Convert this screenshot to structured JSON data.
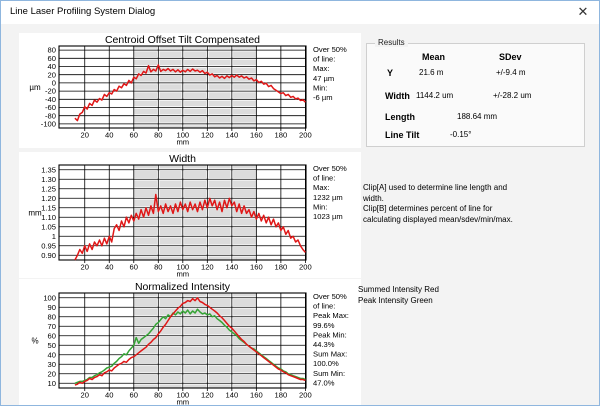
{
  "window": {
    "title": "Line Laser Profiling System Dialog",
    "close_glyph": "✕"
  },
  "results": {
    "group_label": "Results",
    "col_mean": "Mean",
    "col_sdev": "SDev",
    "rows": [
      {
        "label": "Y",
        "mean": "21.6 m",
        "sdev": "+/-9.4 m"
      },
      {
        "label": "Width",
        "mean": "1144.2 um",
        "sdev": "+/-28.2 um"
      },
      {
        "label": "Length",
        "value": "188.64 mm"
      },
      {
        "label": "Line Tilt",
        "value": "-0.15°"
      }
    ]
  },
  "notes": {
    "clip_text": [
      "Clip[A] used to determine line length and",
      "width.",
      "Clip[B] determines percent of line for",
      "calculating displayed mean/sdev/min/max."
    ],
    "legend_text": [
      "Summed Intensity Red",
      "Peak Intensity Green"
    ]
  },
  "colors": {
    "red": "#e01717",
    "green": "#35a435",
    "band": "#dcdcdc",
    "grid": "#000000",
    "dialog_border": "#8fb6de"
  },
  "chart_data": [
    {
      "type": "line",
      "title": "Centroid Offset Tilt Compensated",
      "ylabel": "µm",
      "xlabel": "mm",
      "xlim": [
        -1,
        200.5
      ],
      "ylim": [
        -110,
        90
      ],
      "x_ticks": [
        20,
        40,
        60,
        80,
        100,
        120,
        140,
        160,
        180,
        200
      ],
      "y_ticks": [
        80,
        60,
        40,
        20,
        0,
        -20,
        -40,
        -60,
        -80,
        -100
      ],
      "y_tick_labels": [
        "80",
        "60",
        "40",
        "20",
        "0",
        "-20",
        "-40",
        "-60",
        "-80",
        "-100"
      ],
      "band": [
        60,
        160
      ],
      "side_note": [
        "Over 50%",
        "of line:",
        "Max:",
        "47 µm",
        "Min:",
        "-6 µm"
      ],
      "series": [
        {
          "name": "Centroid Offset",
          "color": "red",
          "x_start": 12,
          "x_step": 2,
          "y": [
            -86,
            -92,
            -76,
            -72,
            -58,
            -64,
            -50,
            -55,
            -42,
            -47,
            -38,
            -42,
            -28,
            -33,
            -24,
            -27,
            -16,
            -20,
            -8,
            -12,
            -2,
            -6,
            6,
            0,
            14,
            10,
            22,
            18,
            28,
            24,
            42,
            27,
            33,
            29,
            44,
            28,
            33,
            30,
            35,
            29,
            33,
            27,
            32,
            26,
            31,
            27,
            33,
            28,
            34,
            29,
            31,
            26,
            30,
            23,
            26,
            19,
            22,
            15,
            18,
            12,
            16,
            11,
            17,
            13,
            18,
            14,
            19,
            14,
            17,
            12,
            15,
            9,
            12,
            5,
            8,
            1,
            4,
            -3,
            -1,
            -9,
            -6,
            -14,
            -18,
            -22,
            -26,
            -24,
            -31,
            -28,
            -35,
            -33,
            -39,
            -37,
            -43,
            -41,
            -47
          ]
        }
      ]
    },
    {
      "type": "line",
      "title": "Width",
      "ylabel": "mm",
      "xlabel": "mm",
      "xlim": [
        -1,
        200.5
      ],
      "ylim": [
        0.875,
        1.375
      ],
      "x_ticks": [
        20,
        40,
        60,
        80,
        100,
        120,
        140,
        160,
        180,
        200
      ],
      "y_ticks": [
        1.35,
        1.3,
        1.25,
        1.2,
        1.15,
        1.1,
        1.05,
        1.0,
        0.95,
        0.9
      ],
      "y_tick_labels": [
        "1.35",
        "1.30",
        "1.25",
        "1.20",
        "1.15",
        "1.10",
        "1.05",
        "1",
        "0.95",
        "0.90"
      ],
      "band": [
        60,
        160
      ],
      "side_note": [
        "Over 50%",
        "of line:",
        "Max:",
        "1232 µm",
        "Min:",
        "1023 µm"
      ],
      "series": [
        {
          "name": "Width",
          "color": "red",
          "x_start": 12,
          "x_step": 2,
          "y": [
            0.875,
            0.9,
            0.93,
            0.91,
            0.95,
            0.92,
            0.96,
            0.93,
            0.97,
            0.95,
            0.98,
            0.95,
            0.99,
            0.96,
            1.0,
            0.97,
            1.04,
            1.06,
            1.03,
            1.08,
            1.05,
            1.1,
            1.07,
            1.11,
            1.08,
            1.12,
            1.09,
            1.14,
            1.1,
            1.15,
            1.11,
            1.16,
            1.12,
            1.22,
            1.13,
            1.16,
            1.12,
            1.17,
            1.13,
            1.16,
            1.12,
            1.17,
            1.13,
            1.18,
            1.14,
            1.17,
            1.13,
            1.18,
            1.14,
            1.17,
            1.13,
            1.18,
            1.14,
            1.19,
            1.15,
            1.2,
            1.16,
            1.19,
            1.14,
            1.18,
            1.13,
            1.19,
            1.15,
            1.2,
            1.16,
            1.18,
            1.13,
            1.17,
            1.12,
            1.16,
            1.12,
            1.14,
            1.1,
            1.13,
            1.09,
            1.12,
            1.08,
            1.11,
            1.07,
            1.1,
            1.06,
            1.09,
            1.05,
            1.07,
            1.03,
            1.05,
            1.01,
            1.03,
            0.99,
            1.0,
            0.97,
            0.98,
            0.95,
            0.93,
            0.915
          ]
        }
      ]
    },
    {
      "type": "line",
      "title": "Normalized Intensity",
      "ylabel": "%",
      "xlabel": "mm",
      "xlim": [
        -1,
        200.5
      ],
      "ylim": [
        5,
        105
      ],
      "x_ticks": [
        20,
        40,
        60,
        80,
        100,
        120,
        140,
        160,
        180,
        200
      ],
      "y_ticks": [
        100,
        90,
        80,
        70,
        60,
        50,
        40,
        30,
        20,
        10
      ],
      "y_tick_labels": [
        "100",
        "90",
        "80",
        "70",
        "60",
        "50",
        "40",
        "30",
        "20",
        "10"
      ],
      "band": [
        60,
        160
      ],
      "side_note": [
        "Over 50%",
        "of line:",
        "Peak Max:",
        "99.6%",
        "Peak Min:",
        "44.3%",
        "Sum Max:",
        "100.0%",
        "Sum Min:",
        "47.0%"
      ],
      "series": [
        {
          "name": "Peak Intensity",
          "color": "green",
          "x_start": 12,
          "x_step": 2,
          "y": [
            10,
            11,
            12,
            12,
            13,
            14,
            16,
            16,
            18,
            19,
            21,
            22,
            24,
            26,
            27,
            28,
            31,
            33,
            36,
            38,
            41,
            40,
            44,
            47,
            50,
            58,
            52,
            56,
            58,
            60,
            62,
            65,
            68,
            72,
            74,
            77,
            80,
            78,
            82,
            80,
            84,
            82,
            85,
            83,
            86,
            84,
            87,
            83,
            86,
            84,
            88,
            85,
            83,
            84,
            82,
            83,
            80,
            81,
            78,
            76,
            74,
            71,
            69,
            66,
            64,
            62,
            60,
            57,
            55,
            53,
            51,
            49,
            47,
            46,
            44,
            42,
            40,
            38,
            36,
            34,
            32,
            30,
            28,
            26,
            25,
            23,
            22,
            20,
            19,
            18,
            17,
            16,
            15,
            15,
            14
          ]
        },
        {
          "name": "Summed Intensity",
          "color": "red",
          "x_start": 12,
          "x_step": 2,
          "y": [
            8,
            9,
            11,
            10,
            12,
            13,
            15,
            14,
            16,
            17,
            19,
            18,
            21,
            22,
            24,
            23,
            26,
            28,
            30,
            31,
            33,
            32,
            35,
            37,
            38,
            40,
            42,
            44,
            46,
            48,
            51,
            53,
            56,
            58,
            62,
            65,
            69,
            72,
            76,
            80,
            83,
            86,
            89,
            91,
            94,
            95,
            97,
            96,
            99,
            97,
            100,
            96,
            95,
            93,
            92,
            90,
            88,
            86,
            84,
            81,
            79,
            76,
            73,
            70,
            68,
            65,
            62,
            59,
            56,
            54,
            51,
            49,
            47,
            45,
            43,
            41,
            39,
            37,
            35,
            33,
            31,
            29,
            27,
            25,
            24,
            22,
            21,
            19,
            18,
            17,
            16,
            15,
            14,
            14,
            13
          ]
        }
      ]
    }
  ]
}
